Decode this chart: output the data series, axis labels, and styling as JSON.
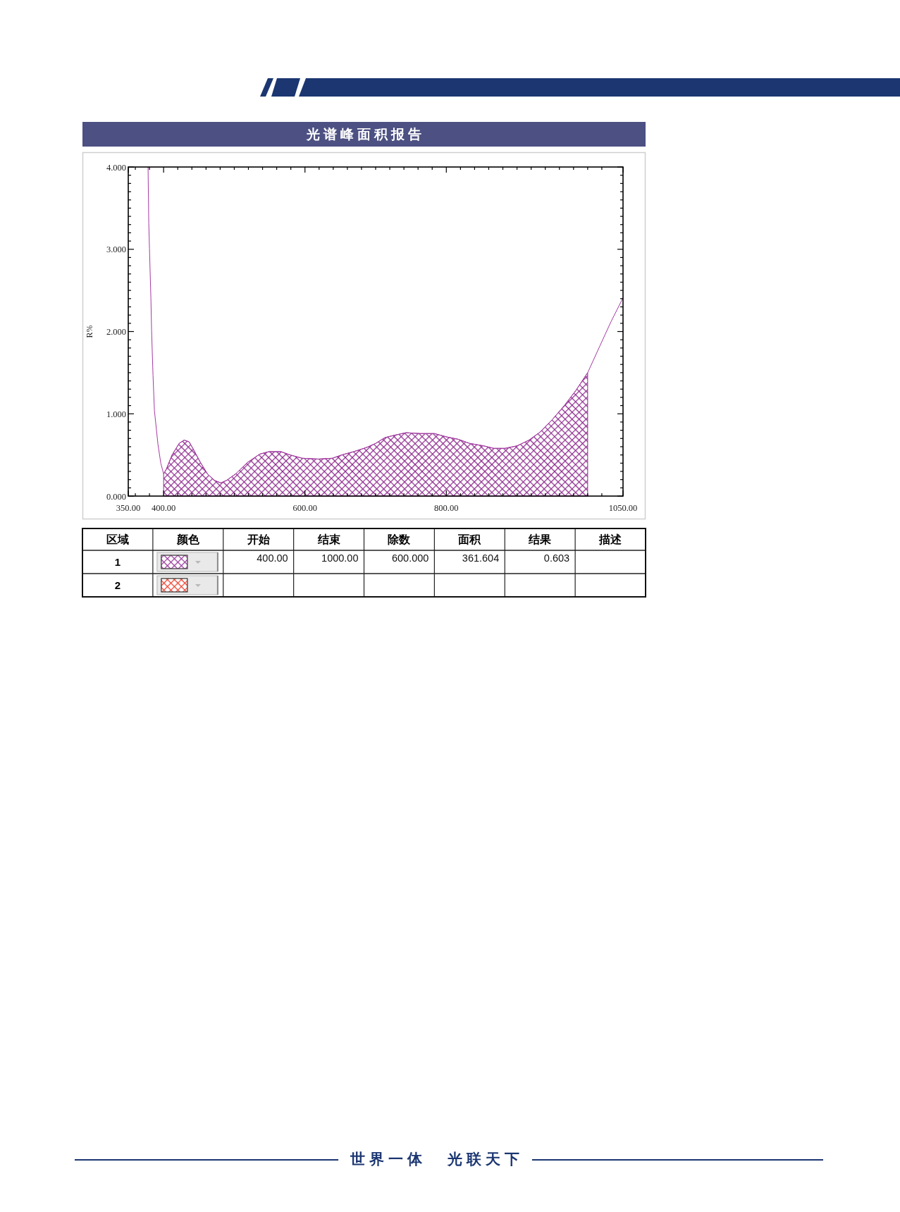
{
  "chart_data": [
    {
      "type": "line",
      "title": "光谱峰面积报告",
      "ylabel": "R%",
      "xlim": [
        350,
        1050
      ],
      "ylim": [
        0,
        4
      ],
      "xticks": [
        {
          "value": 350,
          "label": "350.00"
        },
        {
          "value": 360,
          "label": null
        },
        {
          "value": 380,
          "label": null
        },
        {
          "value": 400,
          "label": "400.00"
        },
        {
          "value": 420,
          "label": null
        },
        {
          "value": 440,
          "label": null
        },
        {
          "value": 460,
          "label": null
        },
        {
          "value": 480,
          "label": null
        },
        {
          "value": 500,
          "label": null
        },
        {
          "value": 520,
          "label": null
        },
        {
          "value": 540,
          "label": null
        },
        {
          "value": 560,
          "label": null
        },
        {
          "value": 580,
          "label": null
        },
        {
          "value": 600,
          "label": "600.00"
        },
        {
          "value": 620,
          "label": null
        },
        {
          "value": 640,
          "label": null
        },
        {
          "value": 660,
          "label": null
        },
        {
          "value": 680,
          "label": null
        },
        {
          "value": 700,
          "label": null
        },
        {
          "value": 720,
          "label": null
        },
        {
          "value": 740,
          "label": null
        },
        {
          "value": 760,
          "label": null
        },
        {
          "value": 780,
          "label": null
        },
        {
          "value": 800,
          "label": "800.00"
        },
        {
          "value": 820,
          "label": null
        },
        {
          "value": 840,
          "label": null
        },
        {
          "value": 860,
          "label": null
        },
        {
          "value": 880,
          "label": null
        },
        {
          "value": 900,
          "label": null
        },
        {
          "value": 920,
          "label": null
        },
        {
          "value": 940,
          "label": null
        },
        {
          "value": 960,
          "label": null
        },
        {
          "value": 980,
          "label": null
        },
        {
          "value": 1000,
          "label": null
        },
        {
          "value": 1020,
          "label": null
        },
        {
          "value": 1050,
          "label": "1050.00"
        }
      ],
      "yticks": [
        {
          "value": 0,
          "label": "0.000"
        },
        {
          "value": 0.1,
          "label": null
        },
        {
          "value": 0.2,
          "label": null
        },
        {
          "value": 0.3,
          "label": null
        },
        {
          "value": 0.4,
          "label": null
        },
        {
          "value": 0.5,
          "label": null
        },
        {
          "value": 0.6,
          "label": null
        },
        {
          "value": 0.7,
          "label": null
        },
        {
          "value": 0.8,
          "label": null
        },
        {
          "value": 0.9,
          "label": null
        },
        {
          "value": 1,
          "label": "1.000"
        },
        {
          "value": 1.1,
          "label": null
        },
        {
          "value": 1.2,
          "label": null
        },
        {
          "value": 1.3,
          "label": null
        },
        {
          "value": 1.4,
          "label": null
        },
        {
          "value": 1.5,
          "label": null
        },
        {
          "value": 1.6,
          "label": null
        },
        {
          "value": 1.7,
          "label": null
        },
        {
          "value": 1.8,
          "label": null
        },
        {
          "value": 1.9,
          "label": null
        },
        {
          "value": 2,
          "label": "2.000"
        },
        {
          "value": 2.1,
          "label": null
        },
        {
          "value": 2.2,
          "label": null
        },
        {
          "value": 2.3,
          "label": null
        },
        {
          "value": 2.4,
          "label": null
        },
        {
          "value": 2.5,
          "label": null
        },
        {
          "value": 2.6,
          "label": null
        },
        {
          "value": 2.7,
          "label": null
        },
        {
          "value": 2.8,
          "label": null
        },
        {
          "value": 2.9,
          "label": null
        },
        {
          "value": 3,
          "label": "3.000"
        },
        {
          "value": 3.1,
          "label": null
        },
        {
          "value": 3.2,
          "label": null
        },
        {
          "value": 3.3,
          "label": null
        },
        {
          "value": 3.4,
          "label": null
        },
        {
          "value": 3.5,
          "label": null
        },
        {
          "value": 3.6,
          "label": null
        },
        {
          "value": 3.7,
          "label": null
        },
        {
          "value": 3.8,
          "label": null
        },
        {
          "value": 3.9,
          "label": null
        },
        {
          "value": 4,
          "label": "4.000"
        }
      ],
      "series": [
        {
          "type": "line",
          "color": "#a53aa3",
          "x": [
            378,
            379,
            380,
            382,
            383,
            385,
            387,
            392,
            396,
            400,
            404,
            412,
            422,
            429,
            436,
            442,
            452,
            462,
            472,
            481,
            489,
            502,
            519,
            536,
            549,
            566,
            579,
            596,
            619,
            639,
            652,
            669,
            687,
            700,
            713,
            727,
            743,
            763,
            783,
            800,
            817,
            833,
            853,
            867,
            883,
            900,
            917,
            933,
            950,
            967,
            983,
            1000,
            1017,
            1033,
            1050
          ],
          "values": [
            4.0,
            3.32,
            3.01,
            2.41,
            2.01,
            1.47,
            1.04,
            0.63,
            0.4,
            0.27,
            0.33,
            0.5,
            0.64,
            0.68,
            0.66,
            0.57,
            0.41,
            0.27,
            0.19,
            0.16,
            0.19,
            0.27,
            0.41,
            0.51,
            0.54,
            0.54,
            0.5,
            0.46,
            0.45,
            0.46,
            0.5,
            0.54,
            0.59,
            0.64,
            0.71,
            0.74,
            0.77,
            0.76,
            0.76,
            0.72,
            0.69,
            0.64,
            0.61,
            0.58,
            0.58,
            0.61,
            0.68,
            0.78,
            0.93,
            1.1,
            1.28,
            1.5,
            1.82,
            2.12,
            2.41
          ]
        },
        {
          "type": "area",
          "color": "#8e2a8e",
          "x": [
            400,
            404,
            412,
            422,
            429,
            436,
            442,
            452,
            462,
            472,
            481,
            489,
            502,
            519,
            536,
            549,
            566,
            579,
            596,
            619,
            639,
            652,
            669,
            687,
            700,
            713,
            727,
            743,
            763,
            783,
            800,
            817,
            833,
            853,
            867,
            883,
            900,
            917,
            933,
            950,
            967,
            983,
            1000
          ],
          "values": [
            0.27,
            0.33,
            0.5,
            0.64,
            0.68,
            0.66,
            0.57,
            0.41,
            0.27,
            0.19,
            0.16,
            0.19,
            0.27,
            0.41,
            0.51,
            0.54,
            0.54,
            0.5,
            0.46,
            0.45,
            0.46,
            0.5,
            0.54,
            0.59,
            0.64,
            0.71,
            0.74,
            0.77,
            0.76,
            0.76,
            0.72,
            0.69,
            0.64,
            0.61,
            0.58,
            0.58,
            0.61,
            0.68,
            0.78,
            0.93,
            1.1,
            1.28,
            1.5
          ]
        }
      ]
    },
    {
      "type": "other",
      "ylabel": "区域",
      "categories": [
        "颜色",
        "开始",
        "结束",
        "除数",
        "面积",
        "结果",
        "描述"
      ],
      "y_categories": [
        "1",
        "2"
      ],
      "colors": [
        "#9b3a9e",
        "#f0402e"
      ],
      "cell_labels": [
        [
          null,
          "400.00",
          "1000.00",
          "600.000",
          "361.604",
          "0.603",
          null
        ],
        [
          null,
          null,
          null,
          null,
          null,
          null,
          null
        ]
      ],
      "annotations": [
        "世界一体 光联天下"
      ]
    }
  ]
}
